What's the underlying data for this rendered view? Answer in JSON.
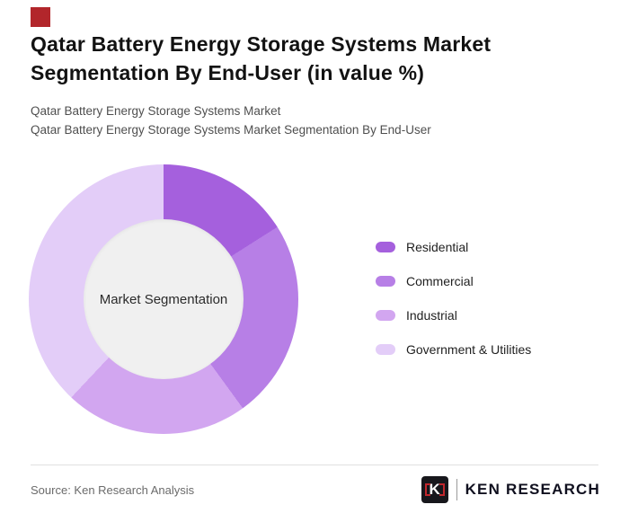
{
  "brand": {
    "accent_square_color": "#b2262b"
  },
  "header": {
    "title": "Qatar Battery Energy Storage Systems Market Segmentation By End-User (in value %)",
    "subtitle_line1": "Qatar Battery Energy Storage Systems Market",
    "subtitle_line2": "Qatar Battery Energy Storage Systems Market Segmentation By End-User"
  },
  "chart_data": {
    "type": "pie",
    "subtype": "donut",
    "title": "Qatar Battery Energy Storage Systems Market Segmentation By End-User (in value %)",
    "center_label": "Market Segmentation",
    "categories": [
      "Residential",
      "Commercial",
      "Industrial",
      "Government & Utilities"
    ],
    "values": [
      16,
      24,
      22,
      38
    ],
    "units": "value %",
    "colors": [
      "#a560dd",
      "#b77fe6",
      "#d2a6f0",
      "#e3cdf8"
    ],
    "legend_position": "right",
    "start_angle_deg": 0,
    "direction": "clockwise"
  },
  "footer": {
    "source": "Source: Ken Research Analysis",
    "logo_letter": "K",
    "logo_text": "KEN RESEARCH",
    "logo_colors": {
      "box": "#17171c",
      "accent": "#c0272d",
      "text": "#10101f"
    }
  }
}
